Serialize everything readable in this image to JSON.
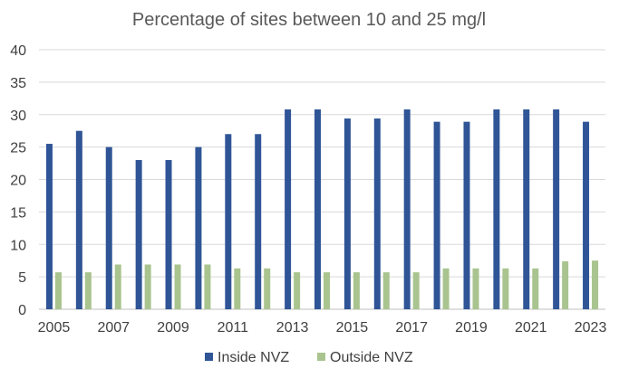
{
  "chart_data": {
    "type": "bar",
    "title": "Percentage of sites between 10 and 25 mg/l",
    "xlabel": "",
    "ylabel": "",
    "ylim": [
      0,
      40
    ],
    "yticks": [
      0,
      5,
      10,
      15,
      20,
      25,
      30,
      35,
      40
    ],
    "categories": [
      "2005",
      "2006",
      "2007",
      "2008",
      "2009",
      "2010",
      "2011",
      "2012",
      "2013",
      "2014",
      "2015",
      "2016",
      "2017",
      "2018",
      "2019",
      "2020",
      "2021",
      "2022",
      "2023"
    ],
    "x_tick_labels": [
      "2005",
      "2007",
      "2009",
      "2011",
      "2013",
      "2015",
      "2017",
      "2019",
      "2021",
      "2023"
    ],
    "series": [
      {
        "name": "Inside NVZ",
        "color": "#2f5597",
        "values": [
          25.5,
          27.5,
          25.0,
          23.0,
          23.0,
          25.0,
          27.0,
          27.0,
          30.8,
          30.8,
          29.4,
          29.4,
          30.8,
          28.9,
          28.9,
          30.8,
          30.8,
          30.8,
          28.9
        ]
      },
      {
        "name": "Outside NVZ",
        "color": "#a9c48f",
        "values": [
          5.7,
          5.7,
          6.9,
          6.9,
          6.9,
          6.9,
          6.3,
          6.3,
          5.7,
          5.7,
          5.7,
          5.7,
          5.7,
          6.3,
          6.3,
          6.3,
          6.3,
          7.4,
          7.5
        ]
      }
    ],
    "grid": true,
    "legend_position": "bottom"
  }
}
